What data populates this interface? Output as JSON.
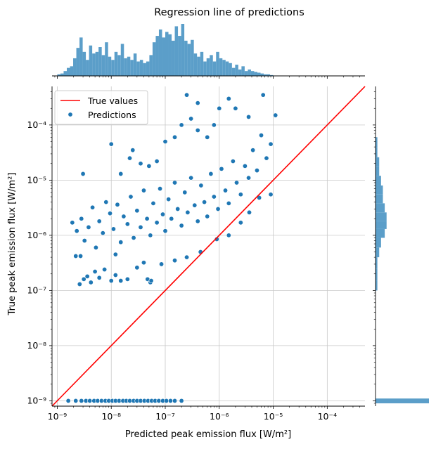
{
  "chart_data": {
    "type": "scatter",
    "title": "Regression line of predictions",
    "xlabel": "Predicted peak emission flux [W/m²]",
    "ylabel": "True peak emission flux [W/m²]",
    "x_scale": "log",
    "y_scale": "log",
    "xlim": [
      8e-10,
      0.0005
    ],
    "ylim": [
      8e-10,
      0.0005
    ],
    "x_ticks": [
      {
        "value": 1e-09,
        "label": "10⁻⁹"
      },
      {
        "value": 1e-08,
        "label": "10⁻⁸"
      },
      {
        "value": 1e-07,
        "label": "10⁻⁷"
      },
      {
        "value": 1e-06,
        "label": "10⁻⁶"
      },
      {
        "value": 1e-05,
        "label": "10⁻⁵"
      },
      {
        "value": 0.0001,
        "label": "10⁻⁴"
      }
    ],
    "y_ticks": [
      {
        "value": 1e-09,
        "label": "10⁻⁹"
      },
      {
        "value": 1e-08,
        "label": "10⁻⁸"
      },
      {
        "value": 1e-07,
        "label": "10⁻⁷"
      },
      {
        "value": 1e-06,
        "label": "10⁻⁶"
      },
      {
        "value": 1e-05,
        "label": "10⁻⁵"
      },
      {
        "value": 0.0001,
        "label": "10⁻⁴"
      }
    ],
    "grid": true,
    "legend_position": "top-left",
    "colors": {
      "points": "#1f77b4",
      "line": "#ff0000",
      "hist": "#5b9ec9",
      "grid": "#c8c8c8"
    },
    "series": [
      {
        "name": "True values",
        "kind": "line",
        "x": [
          8e-10,
          0.0005
        ],
        "y": [
          8e-10,
          0.0005
        ]
      },
      {
        "name": "Predictions",
        "kind": "scatter",
        "points": [
          [
            1.6e-09,
            1e-09
          ],
          [
            2.2e-09,
            1e-09
          ],
          [
            2.8e-09,
            1e-09
          ],
          [
            3.4e-09,
            1e-09
          ],
          [
            4e-09,
            1e-09
          ],
          [
            4.8e-09,
            1e-09
          ],
          [
            5.6e-09,
            1e-09
          ],
          [
            6.6e-09,
            1e-09
          ],
          [
            7.8e-09,
            1e-09
          ],
          [
            9e-09,
            1e-09
          ],
          [
            1.05e-08,
            1e-09
          ],
          [
            1.2e-08,
            1e-09
          ],
          [
            1.4e-08,
            1e-09
          ],
          [
            1.65e-08,
            1e-09
          ],
          [
            1.9e-08,
            1e-09
          ],
          [
            2.2e-08,
            1e-09
          ],
          [
            2.6e-08,
            1e-09
          ],
          [
            3e-08,
            1e-09
          ],
          [
            3.5e-08,
            1e-09
          ],
          [
            4.1e-08,
            1e-09
          ],
          [
            4.8e-08,
            1e-09
          ],
          [
            5.6e-08,
            1e-09
          ],
          [
            6.5e-08,
            1e-09
          ],
          [
            7.6e-08,
            1e-09
          ],
          [
            9e-08,
            1e-09
          ],
          [
            1.05e-07,
            1e-09
          ],
          [
            1.25e-07,
            1e-09
          ],
          [
            1.5e-07,
            1e-09
          ],
          [
            2e-07,
            1e-09
          ],
          [
            2.2e-09,
            4.2e-07
          ],
          [
            2.7e-09,
            4.2e-07
          ],
          [
            2.6e-09,
            1.3e-07
          ],
          [
            3.1e-09,
            1.6e-07
          ],
          [
            3.6e-09,
            1.8e-07
          ],
          [
            4.2e-09,
            1.4e-07
          ],
          [
            5e-09,
            2.2e-07
          ],
          [
            6e-09,
            1.7e-07
          ],
          [
            7.5e-09,
            2.4e-07
          ],
          [
            1e-08,
            1.5e-07
          ],
          [
            1.2e-08,
            1.9e-07
          ],
          [
            1.5e-08,
            1.5e-07
          ],
          [
            2e-08,
            1.6e-07
          ],
          [
            4.7e-08,
            1.6e-07
          ],
          [
            5.3e-08,
            1.4e-07
          ],
          [
            3e-08,
            2.6e-07
          ],
          [
            5.5e-08,
            1.5e-07
          ],
          [
            1.9e-09,
            1.7e-06
          ],
          [
            2.3e-09,
            1.2e-06
          ],
          [
            2.8e-09,
            2e-06
          ],
          [
            3.2e-09,
            8e-07
          ],
          [
            3.8e-09,
            1.4e-06
          ],
          [
            4.5e-09,
            3.2e-06
          ],
          [
            5.2e-09,
            6e-07
          ],
          [
            6e-09,
            1.8e-06
          ],
          [
            7e-09,
            1.1e-06
          ],
          [
            8e-09,
            4e-06
          ],
          [
            9.5e-09,
            2.5e-06
          ],
          [
            1.1e-08,
            1.3e-06
          ],
          [
            1.3e-08,
            3.6e-06
          ],
          [
            1.5e-08,
            7.5e-07
          ],
          [
            1.7e-08,
            2.2e-06
          ],
          [
            2e-08,
            1.6e-06
          ],
          [
            2.3e-08,
            5e-06
          ],
          [
            2.6e-08,
            9e-07
          ],
          [
            3e-08,
            2.8e-06
          ],
          [
            3.5e-08,
            1.4e-06
          ],
          [
            4e-08,
            6.5e-06
          ],
          [
            4.6e-08,
            2e-06
          ],
          [
            5.3e-08,
            1e-06
          ],
          [
            6e-08,
            3.8e-06
          ],
          [
            7e-08,
            1.7e-06
          ],
          [
            8e-08,
            7e-06
          ],
          [
            9e-08,
            2.4e-06
          ],
          [
            1e-07,
            1.2e-06
          ],
          [
            1.15e-07,
            4.5e-06
          ],
          [
            1.3e-07,
            2e-06
          ],
          [
            1.5e-07,
            9e-06
          ],
          [
            1.7e-07,
            3e-06
          ],
          [
            2e-07,
            1.5e-06
          ],
          [
            2.3e-07,
            6e-06
          ],
          [
            2.6e-07,
            2.6e-06
          ],
          [
            3e-07,
            1.1e-05
          ],
          [
            3.5e-07,
            3.5e-06
          ],
          [
            4e-07,
            1.8e-06
          ],
          [
            4.6e-07,
            8e-06
          ],
          [
            5.3e-07,
            4e-06
          ],
          [
            6e-07,
            2.2e-06
          ],
          [
            7e-07,
            1.3e-05
          ],
          [
            8e-07,
            5e-06
          ],
          [
            9.5e-07,
            3e-06
          ],
          [
            1.1e-06,
            1.6e-05
          ],
          [
            1.3e-06,
            6.5e-06
          ],
          [
            1.5e-06,
            3.8e-06
          ],
          [
            1.8e-06,
            2.2e-05
          ],
          [
            2.1e-06,
            9e-06
          ],
          [
            2.5e-06,
            5.5e-06
          ],
          [
            3e-06,
            1.8e-05
          ],
          [
            3.5e-06,
            1.1e-05
          ],
          [
            4.2e-06,
            3.5e-05
          ],
          [
            5e-06,
            1.5e-05
          ],
          [
            6e-06,
            6.5e-05
          ],
          [
            7.5e-06,
            2.5e-05
          ],
          [
            9e-06,
            4.5e-05
          ],
          [
            1.1e-05,
            0.00015
          ],
          [
            9e-06,
            5.5e-06
          ],
          [
            5.5e-06,
            4.8e-06
          ],
          [
            3.6e-06,
            2.6e-06
          ],
          [
            2.5e-06,
            1.7e-06
          ],
          [
            1.5e-06,
            1e-06
          ],
          [
            9e-07,
            8.5e-07
          ],
          [
            4.5e-07,
            5e-07
          ],
          [
            2.5e-07,
            4e-07
          ],
          [
            1.5e-07,
            3.5e-07
          ],
          [
            8.5e-08,
            3e-07
          ],
          [
            4e-08,
            3.2e-07
          ],
          [
            1.2e-08,
            4.5e-07
          ],
          [
            1.5e-08,
            1.3e-05
          ],
          [
            2.2e-08,
            2.5e-05
          ],
          [
            3.5e-08,
            2e-05
          ],
          [
            5e-08,
            1.8e-05
          ],
          [
            7e-08,
            2.2e-05
          ],
          [
            1e-07,
            5e-05
          ],
          [
            1.5e-07,
            6e-05
          ],
          [
            2e-07,
            0.0001
          ],
          [
            3e-07,
            0.00013
          ],
          [
            4e-07,
            8e-05
          ],
          [
            6e-07,
            6e-05
          ],
          [
            8e-07,
            0.0001
          ],
          [
            1e-06,
            0.0002
          ],
          [
            1.5e-06,
            0.0003
          ],
          [
            2e-06,
            0.0002
          ],
          [
            3.5e-06,
            0.00014
          ],
          [
            6.5e-06,
            0.00035
          ],
          [
            2.5e-07,
            0.00035
          ],
          [
            4e-07,
            0.00025
          ],
          [
            2.5e-08,
            3.5e-05
          ],
          [
            1e-08,
            4.5e-05
          ],
          [
            3e-09,
            1.3e-05
          ]
        ]
      }
    ],
    "x_histogram": {
      "bins_start": 1e-09,
      "bins_end": 1e-05,
      "counts": [
        2,
        3,
        6,
        10,
        12,
        22,
        35,
        48,
        30,
        20,
        38,
        28,
        30,
        36,
        26,
        42,
        24,
        20,
        30,
        26,
        40,
        22,
        24,
        20,
        28,
        18,
        20,
        16,
        18,
        26,
        42,
        50,
        58,
        48,
        55,
        52,
        44,
        62,
        50,
        65,
        44,
        40,
        45,
        28,
        24,
        30,
        18,
        22,
        26,
        18,
        30,
        22,
        20,
        18,
        16,
        10,
        14,
        8,
        12,
        6,
        8,
        6,
        5,
        4,
        3,
        2,
        2,
        1
      ]
    },
    "y_histogram": {
      "bins": [
        {
          "low": 1e-07,
          "high": 1.5e-07,
          "count": 1
        },
        {
          "low": 1.5e-07,
          "high": 2.5e-07,
          "count": 1
        },
        {
          "low": 2.5e-07,
          "high": 4e-07,
          "count": 1
        },
        {
          "low": 4e-07,
          "high": 6e-07,
          "count": 2
        },
        {
          "low": 6e-07,
          "high": 9e-07,
          "count": 3
        },
        {
          "low": 9e-07,
          "high": 1.3e-06,
          "count": 5
        },
        {
          "low": 1.3e-06,
          "high": 1.8e-06,
          "count": 6
        },
        {
          "low": 1.8e-06,
          "high": 2.6e-06,
          "count": 6
        },
        {
          "low": 2.6e-06,
          "high": 3.8e-06,
          "count": 5
        },
        {
          "low": 3.8e-06,
          "high": 5.5e-06,
          "count": 4
        },
        {
          "low": 5.5e-06,
          "high": 8e-06,
          "count": 4
        },
        {
          "low": 8e-06,
          "high": 1.2e-05,
          "count": 3
        },
        {
          "low": 1.2e-05,
          "high": 1.8e-05,
          "count": 2
        },
        {
          "low": 1.8e-05,
          "high": 2.6e-05,
          "count": 2
        },
        {
          "low": 2.6e-05,
          "high": 4e-05,
          "count": 1
        },
        {
          "low": 4e-05,
          "high": 6e-05,
          "count": 1
        },
        {
          "low": 9e-10,
          "high": 1.1e-09,
          "count": 29
        }
      ]
    }
  }
}
